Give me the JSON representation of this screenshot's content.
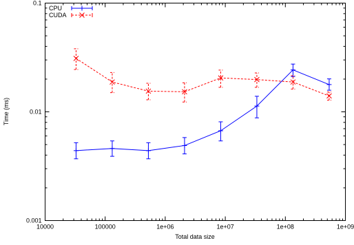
{
  "chart_data": {
    "type": "line",
    "title": "",
    "xlabel": "Total data size",
    "ylabel": "Time (ms)",
    "x_scale": "log",
    "y_scale": "log",
    "xlim": [
      10000,
      1000000000
    ],
    "ylim": [
      0.001,
      0.1
    ],
    "grid": false,
    "legend_position": "top-left",
    "x_ticks": [
      {
        "value": 10000,
        "label": "10000"
      },
      {
        "value": 100000,
        "label": "100000"
      },
      {
        "value": 1000000,
        "label": "1e+06"
      },
      {
        "value": 10000000,
        "label": "1e+07"
      },
      {
        "value": 100000000,
        "label": "1e+08"
      },
      {
        "value": 1000000000,
        "label": "1e+09"
      }
    ],
    "y_ticks": [
      {
        "value": 0.001,
        "label": "0.001"
      },
      {
        "value": 0.01,
        "label": "0.01"
      },
      {
        "value": 0.1,
        "label": "0.1"
      }
    ],
    "series": [
      {
        "name": "CPU",
        "color": "#0000ff",
        "line_style": "solid",
        "marker": "plus",
        "points": [
          {
            "x": 32768,
            "y": 0.0044,
            "ylow": 0.0037,
            "yhigh": 0.0052
          },
          {
            "x": 131072,
            "y": 0.0046,
            "ylow": 0.0039,
            "yhigh": 0.0054
          },
          {
            "x": 524288,
            "y": 0.0044,
            "ylow": 0.0037,
            "yhigh": 0.0052
          },
          {
            "x": 2097152,
            "y": 0.0049,
            "ylow": 0.0041,
            "yhigh": 0.0058
          },
          {
            "x": 8388608,
            "y": 0.0067,
            "ylow": 0.0054,
            "yhigh": 0.0081
          },
          {
            "x": 33554432,
            "y": 0.0113,
            "ylow": 0.0088,
            "yhigh": 0.0139
          },
          {
            "x": 134217728,
            "y": 0.0243,
            "ylow": 0.0211,
            "yhigh": 0.0275
          },
          {
            "x": 536870912,
            "y": 0.0178,
            "ylow": 0.0158,
            "yhigh": 0.0201
          }
        ]
      },
      {
        "name": "CUDA",
        "color": "#ff0000",
        "line_style": "dashed",
        "marker": "cross",
        "points": [
          {
            "x": 32768,
            "y": 0.031,
            "ylow": 0.0245,
            "yhigh": 0.038
          },
          {
            "x": 131072,
            "y": 0.0188,
            "ylow": 0.015,
            "yhigh": 0.023
          },
          {
            "x": 524288,
            "y": 0.0155,
            "ylow": 0.0129,
            "yhigh": 0.0183
          },
          {
            "x": 2097152,
            "y": 0.0153,
            "ylow": 0.0123,
            "yhigh": 0.0185
          },
          {
            "x": 8388608,
            "y": 0.0205,
            "ylow": 0.0168,
            "yhigh": 0.0242
          },
          {
            "x": 33554432,
            "y": 0.0198,
            "ylow": 0.0168,
            "yhigh": 0.0228
          },
          {
            "x": 134217728,
            "y": 0.0188,
            "ylow": 0.0162,
            "yhigh": 0.0215
          },
          {
            "x": 536870912,
            "y": 0.014,
            "ylow": 0.0128,
            "yhigh": 0.0152
          }
        ]
      }
    ]
  }
}
